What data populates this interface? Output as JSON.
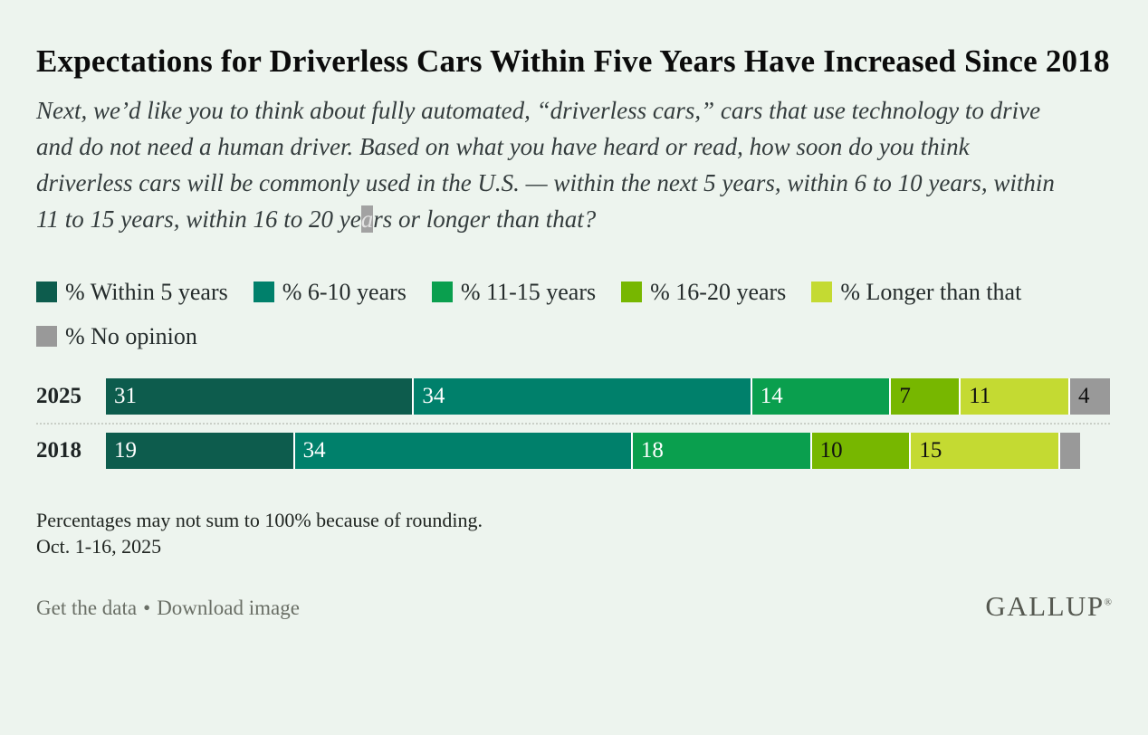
{
  "page": {
    "background": "#edf4ee"
  },
  "header": {
    "title": "Expectations for Driverless Cars Within Five Years Have Increased Since 2018",
    "question_before": "Next, we’d like you to think about fully automated, “driverless cars,” cars that use technology to drive and do not need a human driver. Based on what you have heard or read, how soon do you think driverless cars will be commonly used in the U.S. — within the next 5 years, within 6 to 10 years, within 11 to 15 years, within 16 to 20 ye",
    "question_highlighted_char": "a",
    "question_after": "rs or longer than that?"
  },
  "chart_data": {
    "type": "bar",
    "orientation": "horizontal",
    "stacked": true,
    "unit": "%",
    "legend_position": "top",
    "scale_max": 101,
    "categories": [
      "2025",
      "2018"
    ],
    "series": [
      {
        "name": "% Within 5 years",
        "color": "#0d5c4d",
        "values": [
          31,
          19
        ]
      },
      {
        "name": "% 6-10 years",
        "color": "#00806b",
        "values": [
          34,
          34
        ]
      },
      {
        "name": "% 11-15 years",
        "color": "#0a9f4e",
        "values": [
          14,
          18
        ]
      },
      {
        "name": "% 16-20 years",
        "color": "#77b700",
        "values": [
          7,
          10
        ]
      },
      {
        "name": "% Longer than that",
        "color": "#c4da32",
        "values": [
          11,
          15
        ]
      },
      {
        "name": "% No opinion",
        "color": "#999999",
        "values": [
          4,
          2
        ],
        "label_visible": [
          true,
          false
        ]
      }
    ],
    "title": "Expectations for Driverless Cars Within Five Years Have Increased Since 2018",
    "separator_between_rows": "dotted"
  },
  "footnote": {
    "rounding_note": "Percentages may not sum to 100% because of rounding.",
    "field_dates": "Oct. 1-16, 2025"
  },
  "footer": {
    "get_data_label": "Get the data",
    "separator": "•",
    "download_label": "Download image",
    "brand": "GALLUP",
    "registered_mark": "®"
  }
}
